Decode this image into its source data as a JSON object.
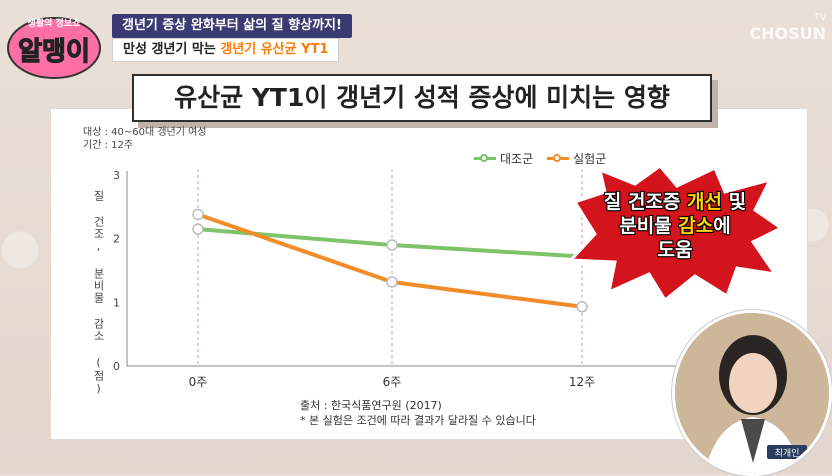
{
  "overlay": {
    "logo_small": "생활의 정보쇼",
    "logo_main": "알맹이",
    "topline": "갱년기 증상 완화부터 삶의 질 향상까지!",
    "subline_prefix": "만성 갱년기 막는 ",
    "subline_highlight": "갱년기 유산균 YT1",
    "watermark_top": "TV",
    "watermark_bottom": "CHOSUN"
  },
  "panel": {
    "title": "유산균 YT1이 갱년기 성적 증상에 미치는 영향",
    "meta_subject": "대상 : 40~60대 갱년기 여성",
    "meta_period": "기간 : 12주",
    "source": "출처 : 한국식품연구원 (2017)",
    "note": "* 본 실험은 조건에 따라 결과가 달라질 수 있습니다",
    "callout_line1_a": "질 건조증 ",
    "callout_line1_b": "개선",
    "callout_line1_c": " 및",
    "callout_line2_a": "분비물 ",
    "callout_line2_b": "감소",
    "callout_line2_c": "에",
    "callout_line3": "도움",
    "person_name": "최개인"
  },
  "chart_data": {
    "type": "line",
    "categories": [
      "0주",
      "6주",
      "12주"
    ],
    "series": [
      {
        "name": "대조군",
        "values": [
          2.15,
          1.9,
          1.72
        ],
        "color": "#7cc36a"
      },
      {
        "name": "실험군",
        "values": [
          2.38,
          1.32,
          0.93
        ],
        "color": "#f28c28"
      }
    ],
    "ylabel": "질 건조, 분비물 감소 (점)",
    "ylim": [
      0,
      3
    ],
    "yticks": [
      "0",
      "1",
      "2",
      "3"
    ],
    "grid": "dashed vertical lines at 6주 and 12주",
    "legend": "top-right"
  }
}
